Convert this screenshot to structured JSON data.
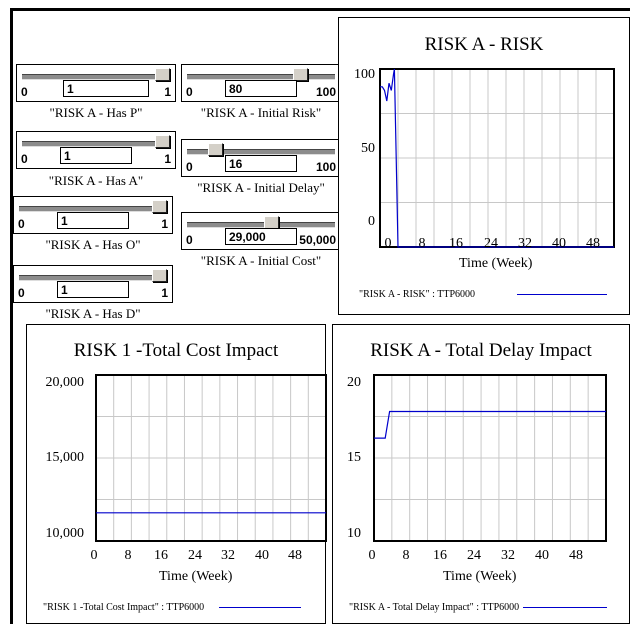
{
  "sliders": {
    "has_p": {
      "value": "1",
      "min": "0",
      "max": "1",
      "label": "\"RISK A - Has P\"",
      "fraction": 1.0
    },
    "has_a": {
      "value": "1",
      "min": "0",
      "max": "1",
      "label": "\"RISK A - Has A\"",
      "fraction": 1.0
    },
    "has_o": {
      "value": "1",
      "min": "0",
      "max": "1",
      "label": "\"RISK A - Has O\"",
      "fraction": 1.0
    },
    "has_d": {
      "value": "1",
      "min": "0",
      "max": "1",
      "label": "\"RISK A - Has D\"",
      "fraction": 1.0
    },
    "initial_risk": {
      "value": "80",
      "min": "0",
      "max": "100",
      "label": "\"RISK A - Initial Risk\"",
      "fraction": 0.8
    },
    "initial_delay": {
      "value": "16",
      "min": "0",
      "max": "100",
      "label": "\"RISK A - Initial Delay\"",
      "fraction": 0.16
    },
    "initial_cost": {
      "value": "29,000",
      "min": "0",
      "max": "50,000",
      "label": "\"RISK A - Initial Cost\"",
      "fraction": 0.58
    }
  },
  "chart_data": [
    {
      "type": "line",
      "title": "RISK A - RISK",
      "xlabel": "Time (Week)",
      "xlim": [
        0,
        52
      ],
      "ylim": [
        0,
        100
      ],
      "xticks": [
        "0",
        "8",
        "16",
        "24",
        "32",
        "40",
        "48"
      ],
      "yticks": [
        "100",
        "50",
        "0"
      ],
      "grid": true,
      "legend": "\"RISK A - RISK\" : TTP6000",
      "color": "#0000cc",
      "x": [
        0,
        0.5,
        1,
        1.5,
        2,
        2.5,
        3,
        3.2,
        4,
        4.5,
        52
      ],
      "y": [
        90,
        90,
        88,
        82,
        92,
        88,
        97,
        100,
        0,
        0,
        0
      ]
    },
    {
      "type": "line",
      "title": "RISK 1 -Total Cost Impact",
      "xlabel": "Time (Week)",
      "xlim": [
        0,
        52
      ],
      "ylim": [
        10000,
        20000
      ],
      "xticks": [
        "0",
        "8",
        "16",
        "24",
        "32",
        "40",
        "48"
      ],
      "yticks": [
        "20,000",
        "15,000",
        "10,000"
      ],
      "grid": true,
      "legend": "\"RISK 1 -Total Cost Impact\" : TTP6000",
      "color": "#0000cc",
      "x": [
        0,
        52
      ],
      "y": [
        11700,
        11700
      ]
    },
    {
      "type": "line",
      "title": "RISK A - Total Delay Impact",
      "xlabel": "Time (Week)",
      "xlim": [
        0,
        52
      ],
      "ylim": [
        10,
        20
      ],
      "xticks": [
        "0",
        "8",
        "16",
        "24",
        "32",
        "40",
        "48"
      ],
      "yticks": [
        "20",
        "15",
        "10"
      ],
      "grid": true,
      "legend": "\"RISK A - Total Delay Impact\" : TTP6000",
      "color": "#0000cc",
      "x": [
        0,
        2.5,
        3.5,
        52
      ],
      "y": [
        16.2,
        16.2,
        17.8,
        17.8
      ]
    }
  ]
}
